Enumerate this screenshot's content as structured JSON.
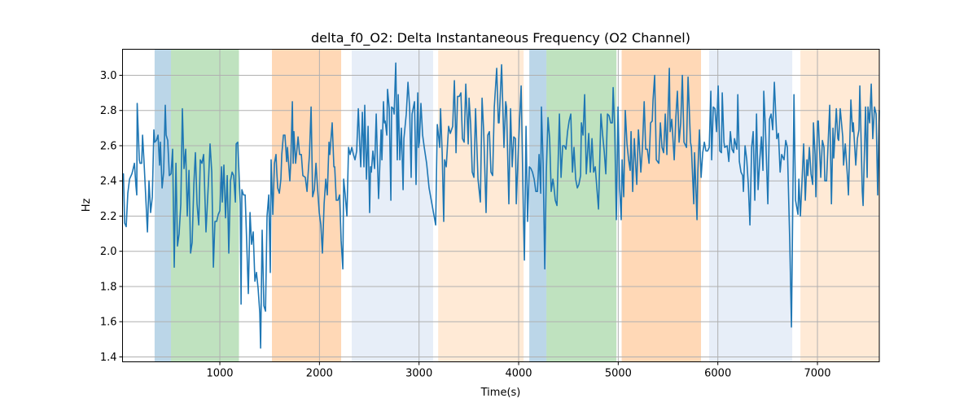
{
  "chart_data": {
    "type": "line",
    "title": "delta_f0_O2: Delta Instantaneous Frequency (O2 Channel)",
    "xlabel": "Time(s)",
    "ylabel": "Hz",
    "xlim": [
      23,
      7621
    ],
    "ylim": [
      1.372,
      3.148
    ],
    "xticks": [
      1000,
      2000,
      3000,
      4000,
      5000,
      6000,
      7000
    ],
    "xtick_labels": [
      "1000",
      "2000",
      "3000",
      "4000",
      "5000",
      "6000",
      "7000"
    ],
    "yticks": [
      1.4,
      1.6,
      1.8,
      2.0,
      2.2,
      2.4,
      2.6,
      2.8,
      3.0
    ],
    "ytick_labels": [
      "1.4",
      "1.6",
      "1.8",
      "2.0",
      "2.2",
      "2.4",
      "2.6",
      "2.8",
      "3.0"
    ],
    "grid": true,
    "line_color": "#1f77b4",
    "bands": [
      {
        "start": 345,
        "end": 509,
        "color": "#1f77b4",
        "opacity": 0.3
      },
      {
        "start": 509,
        "end": 1192,
        "color": "#2ca02c",
        "opacity": 0.3
      },
      {
        "start": 1523,
        "end": 2218,
        "color": "#ff7f0e",
        "opacity": 0.3
      },
      {
        "start": 2324,
        "end": 3141,
        "color": "#aec7e8",
        "opacity": 0.3
      },
      {
        "start": 3192,
        "end": 4050,
        "color": "#ffbb78",
        "opacity": 0.3
      },
      {
        "start": 4107,
        "end": 4279,
        "color": "#1f77b4",
        "opacity": 0.3
      },
      {
        "start": 4279,
        "end": 4982,
        "color": "#2ca02c",
        "opacity": 0.3
      },
      {
        "start": 5034,
        "end": 5831,
        "color": "#ff7f0e",
        "opacity": 0.3
      },
      {
        "start": 5913,
        "end": 6747,
        "color": "#aec7e8",
        "opacity": 0.3
      },
      {
        "start": 6829,
        "end": 7621,
        "color": "#ffbb78",
        "opacity": 0.3
      }
    ],
    "series": [
      {
        "name": "delta_f0_O2",
        "x": [
          32,
          44,
          60,
          76,
          93,
          117,
          126,
          142,
          158,
          166,
          170,
          191,
          199,
          215,
          224,
          240,
          273,
          289,
          305,
          322,
          338,
          346,
          363,
          379,
          395,
          403,
          420,
          436,
          452,
          461,
          477,
          493,
          510,
          526,
          542,
          559,
          575,
          591,
          608,
          624,
          640,
          657,
          673,
          690,
          706,
          722,
          739,
          755,
          771,
          788,
          804,
          820,
          837,
          861,
          886,
          902,
          919,
          935,
          951,
          968,
          984,
          1000,
          1017,
          1025,
          1041,
          1057,
          1074,
          1090,
          1107,
          1123,
          1139,
          1156,
          1164,
          1180,
          1205,
          1213,
          1221,
          1237,
          1254,
          1270,
          1286,
          1303,
          1319,
          1335,
          1352,
          1368,
          1384,
          1401,
          1409,
          1425,
          1442,
          1458,
          1474,
          1491,
          1507,
          1515,
          1532,
          1548,
          1564,
          1573,
          1581,
          1597,
          1613,
          1622,
          1638,
          1654,
          1671,
          1679,
          1703,
          1712,
          1728,
          1736,
          1744,
          1761,
          1785,
          1801,
          1818,
          1834,
          1858,
          1875,
          1883,
          1900,
          1916,
          1932,
          1949,
          1965,
          1981,
          1998,
          2014,
          2030,
          2047,
          2063,
          2079,
          2096,
          2104,
          2128,
          2145,
          2153,
          2169,
          2186,
          2202,
          2218,
          2235,
          2243,
          2259,
          2276,
          2292,
          2308,
          2325,
          2341,
          2357,
          2374,
          2390,
          2406,
          2415,
          2431,
          2447,
          2455,
          2472,
          2488,
          2504,
          2513,
          2521,
          2537,
          2554,
          2570,
          2586,
          2594,
          2619,
          2627,
          2643,
          2652,
          2660,
          2676,
          2684,
          2701,
          2717,
          2725,
          2742,
          2750,
          2766,
          2782,
          2791,
          2807,
          2823,
          2840,
          2848,
          2872,
          2889,
          2905,
          2921,
          2930,
          2954,
          2970,
          2987,
          2995,
          3003,
          3019,
          3036,
          3052,
          3076,
          3101,
          3126,
          3167,
          3183,
          3191,
          3208,
          3216,
          3232,
          3248,
          3257,
          3273,
          3297,
          3314,
          3338,
          3355,
          3371,
          3387,
          3404,
          3420,
          3436,
          3453,
          3469,
          3494,
          3502,
          3518,
          3534,
          3551,
          3567,
          3592,
          3616,
          3633,
          3649,
          3673,
          3690,
          3706,
          3722,
          3739,
          3755,
          3780,
          3796,
          3804,
          3829,
          3853,
          3870,
          3878,
          3902,
          3919,
          3935,
          3951,
          3968,
          3976,
          4000,
          4025,
          4049,
          4058,
          4074,
          4090,
          4107,
          4123,
          4139,
          4156,
          4172,
          4189,
          4205,
          4221,
          4229,
          4246,
          4262,
          4278,
          4295,
          4311,
          4327,
          4344,
          4352,
          4368,
          4385,
          4409,
          4426,
          4442,
          4458,
          4475,
          4491,
          4507,
          4524,
          4540,
          4556,
          4573,
          4589,
          4605,
          4622,
          4630,
          4646,
          4663,
          4679,
          4704,
          4720,
          4736,
          4753,
          4769,
          4802,
          4826,
          4843,
          4859,
          4875,
          4892,
          4908,
          4924,
          4941,
          4949,
          4965,
          4981,
          4998,
          5014,
          5030,
          5039,
          5055,
          5071,
          5088,
          5104,
          5120,
          5129,
          5145,
          5161,
          5178,
          5186,
          5202,
          5210,
          5227,
          5243,
          5260,
          5276,
          5292,
          5309,
          5325,
          5341,
          5349,
          5366,
          5382,
          5407,
          5423,
          5439,
          5456,
          5472,
          5488,
          5513,
          5521,
          5537,
          5562,
          5578,
          5594,
          5611,
          5627,
          5644,
          5660,
          5685,
          5701,
          5725,
          5734,
          5758,
          5766,
          5791,
          5799,
          5815,
          5832,
          5848,
          5864,
          5881,
          5897,
          5913,
          5930,
          5938,
          5954,
          5971,
          5987,
          6003,
          6020,
          6036,
          6044,
          6061,
          6069,
          6093,
          6110,
          6126,
          6142,
          6159,
          6167,
          6191,
          6200,
          6216,
          6232,
          6249,
          6257,
          6273,
          6290,
          6306,
          6322,
          6339,
          6355,
          6371,
          6388,
          6404,
          6421,
          6437,
          6453,
          6461,
          6478,
          6502,
          6518,
          6535,
          6551,
          6567,
          6592,
          6608,
          6625,
          6641,
          6665,
          6682,
          6698,
          6723,
          6739,
          6764,
          6780,
          6804,
          6813,
          6829,
          6845,
          6862,
          6878,
          6894,
          6903,
          6919,
          6935,
          6952,
          6960,
          6976,
          6984,
          7001,
          7009,
          7033,
          7050,
          7066,
          7074,
          7091,
          7123,
          7140,
          7156,
          7164,
          7189,
          7205,
          7213,
          7229,
          7254,
          7262,
          7279,
          7303,
          7311,
          7336,
          7352,
          7360,
          7385,
          7401,
          7417,
          7426,
          7450,
          7458,
          7483,
          7499,
          7507,
          7524,
          7540,
          7556,
          7573,
          7589,
          7605,
          7621
        ],
        "y": [
          2.44,
          2.16,
          2.14,
          2.33,
          2.41,
          2.44,
          2.46,
          2.5,
          2.37,
          2.32,
          2.84,
          2.52,
          2.5,
          2.5,
          2.66,
          2.5,
          2.11,
          2.4,
          2.22,
          2.31,
          2.69,
          2.62,
          2.63,
          2.66,
          2.49,
          2.62,
          2.36,
          2.45,
          2.83,
          2.66,
          2.63,
          2.43,
          2.44,
          2.58,
          1.91,
          2.5,
          2.03,
          2.1,
          2.27,
          2.81,
          2.47,
          2.58,
          2.2,
          2.46,
          1.99,
          2.05,
          2.38,
          2.56,
          2.27,
          2.15,
          2.52,
          2.5,
          2.55,
          2.11,
          2.4,
          2.61,
          2.45,
          1.91,
          2.17,
          2.17,
          2.21,
          2.23,
          2.48,
          2.28,
          2.49,
          2.19,
          2.43,
          1.99,
          2.4,
          2.45,
          2.43,
          2.28,
          2.61,
          2.62,
          2.27,
          1.7,
          2.35,
          2.32,
          2.32,
          2.04,
          1.76,
          2.22,
          2.04,
          2.11,
          1.83,
          1.88,
          1.79,
          1.65,
          1.45,
          2.12,
          1.69,
          1.66,
          2.2,
          2.32,
          1.88,
          2.52,
          2.21,
          2.5,
          2.55,
          2.44,
          2.36,
          2.33,
          2.41,
          2.55,
          2.66,
          2.66,
          2.51,
          2.59,
          2.4,
          2.5,
          2.85,
          2.5,
          2.68,
          2.5,
          2.65,
          2.55,
          2.55,
          2.43,
          2.42,
          2.34,
          2.41,
          2.55,
          2.82,
          2.31,
          2.35,
          2.5,
          2.36,
          2.22,
          2.15,
          1.99,
          2.27,
          2.41,
          2.32,
          2.62,
          2.55,
          2.73,
          2.48,
          2.48,
          2.29,
          2.29,
          2.32,
          2.06,
          1.9,
          2.41,
          2.32,
          2.2,
          2.59,
          2.55,
          2.59,
          2.55,
          2.52,
          2.57,
          2.81,
          2.59,
          2.48,
          2.79,
          2.48,
          2.83,
          2.41,
          2.71,
          2.22,
          2.48,
          2.45,
          2.57,
          2.47,
          2.78,
          2.45,
          2.3,
          2.69,
          2.52,
          2.85,
          2.73,
          2.74,
          2.66,
          2.92,
          2.81,
          2.29,
          2.82,
          2.81,
          2.78,
          3.07,
          2.52,
          2.89,
          2.52,
          2.7,
          2.35,
          2.64,
          2.78,
          2.96,
          2.82,
          2.42,
          2.78,
          2.85,
          2.38,
          2.9,
          2.59,
          2.62,
          2.84,
          2.66,
          2.59,
          2.5,
          2.36,
          2.28,
          2.15,
          2.72,
          2.68,
          2.59,
          2.81,
          2.56,
          2.17,
          2.52,
          2.48,
          2.71,
          2.67,
          2.71,
          2.97,
          2.56,
          2.88,
          2.88,
          2.9,
          2.64,
          2.62,
          2.95,
          2.61,
          2.87,
          2.72,
          2.45,
          2.42,
          2.81,
          2.41,
          2.28,
          2.87,
          2.68,
          2.22,
          2.66,
          2.68,
          2.45,
          2.43,
          2.82,
          3.04,
          2.73,
          2.73,
          3.06,
          2.59,
          2.85,
          2.82,
          2.27,
          2.81,
          2.48,
          2.65,
          2.64,
          2.27,
          2.62,
          2.94,
          2.18,
          1.95,
          2.71,
          2.17,
          2.48,
          2.47,
          2.45,
          2.41,
          2.34,
          2.34,
          2.55,
          2.33,
          2.82,
          2.5,
          1.9,
          2.45,
          2.76,
          2.64,
          2.34,
          2.41,
          2.38,
          2.29,
          2.26,
          2.78,
          2.42,
          2.6,
          2.6,
          2.58,
          2.68,
          2.74,
          2.78,
          2.45,
          2.59,
          2.41,
          2.36,
          2.38,
          2.43,
          2.73,
          2.66,
          2.89,
          2.44,
          2.67,
          2.45,
          2.64,
          2.45,
          2.48,
          2.24,
          2.78,
          2.66,
          2.57,
          2.44,
          2.78,
          2.77,
          2.73,
          2.73,
          2.93,
          2.68,
          2.18,
          2.82,
          2.36,
          2.18,
          2.52,
          2.31,
          2.8,
          2.61,
          2.52,
          2.46,
          2.68,
          2.34,
          2.64,
          2.46,
          2.38,
          2.69,
          2.62,
          2.45,
          2.59,
          2.85,
          2.58,
          2.58,
          2.5,
          2.73,
          2.74,
          2.86,
          3.0,
          2.52,
          2.5,
          2.73,
          2.59,
          2.56,
          2.78,
          2.55,
          3.04,
          2.68,
          2.75,
          2.52,
          2.76,
          2.91,
          2.62,
          2.73,
          3.0,
          2.62,
          2.59,
          2.99,
          2.62,
          2.59,
          2.27,
          2.56,
          2.18,
          2.45,
          2.69,
          2.42,
          2.56,
          2.62,
          2.57,
          2.57,
          2.59,
          2.91,
          2.52,
          2.82,
          2.81,
          2.68,
          2.94,
          2.57,
          2.56,
          2.9,
          2.62,
          2.59,
          2.6,
          2.51,
          2.68,
          2.58,
          2.56,
          2.64,
          2.58,
          2.89,
          2.51,
          2.45,
          2.43,
          2.34,
          2.6,
          2.52,
          2.38,
          2.15,
          2.59,
          2.68,
          2.29,
          2.78,
          2.35,
          2.52,
          2.65,
          2.46,
          2.91,
          2.69,
          2.27,
          2.75,
          2.78,
          2.69,
          2.96,
          2.64,
          2.67,
          2.45,
          2.55,
          2.52,
          2.63,
          2.59,
          2.04,
          1.57,
          2.89,
          2.29,
          2.21,
          2.41,
          2.2,
          2.4,
          2.61,
          2.29,
          2.52,
          2.43,
          2.59,
          2.44,
          2.38,
          2.73,
          2.55,
          2.31,
          2.74,
          2.74,
          2.42,
          2.63,
          2.59,
          2.4,
          2.4,
          2.83,
          2.27,
          2.7,
          2.53,
          2.81,
          2.64,
          2.63,
          2.81,
          2.65,
          2.49,
          2.61,
          2.41,
          2.32,
          2.86,
          2.68,
          2.73,
          2.49,
          2.64,
          2.69,
          2.94,
          2.34,
          2.26,
          2.82,
          2.42,
          2.82,
          2.73,
          2.95,
          2.64,
          2.82,
          2.78,
          2.32,
          2.8
        ]
      }
    ]
  }
}
